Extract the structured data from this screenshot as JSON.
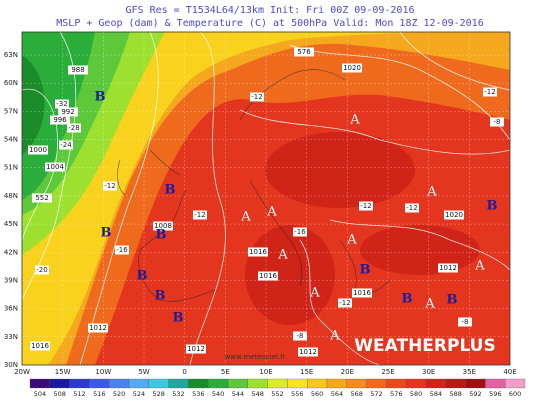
{
  "header": {
    "line1": "GFS Res = T1534L64/13km   Init: Fri 00Z 09-09-2016",
    "line2": "MSLP + Geop (dam) & Temperature (C) at 500hPa   Valid: Mon 18Z 12-09-2016"
  },
  "lat_labels": [
    "63N",
    "60N",
    "57N",
    "54N",
    "51N",
    "48N",
    "45N",
    "42N",
    "39N",
    "36N",
    "33N",
    "30N"
  ],
  "lon_labels": [
    "20W",
    "15W",
    "10W",
    "5W",
    "0",
    "5E",
    "10E",
    "15E",
    "20E",
    "25E",
    "30E",
    "35E",
    "40E"
  ],
  "pressure_labels": [
    988,
    992,
    996,
    1000,
    1004,
    552,
    1008,
    1016,
    1016,
    1016,
    1012,
    1012,
    1012,
    1012,
    1016,
    1020,
    1020,
    576
  ],
  "temperature_labels": [
    "-32",
    "-28",
    "-24",
    "-20",
    "-16",
    "-12",
    "-12",
    "-12",
    "-16",
    "-12",
    "-12",
    "-8",
    "-12",
    "-8",
    "-12",
    "-8"
  ],
  "high_markers": [
    "A",
    "A",
    "A",
    "A",
    "A",
    "A",
    "A",
    "A",
    "A",
    "A"
  ],
  "low_markers": [
    "B",
    "B",
    "B",
    "B",
    "B",
    "B",
    "B",
    "B",
    "B",
    "B",
    "B"
  ],
  "watermark": "WEATHERPLUS",
  "source": "www.meteociel.fr",
  "colorbar": {
    "labels": [
      504,
      508,
      512,
      516,
      520,
      524,
      528,
      532,
      536,
      540,
      544,
      548,
      552,
      556,
      560,
      564,
      568,
      572,
      576,
      580,
      584,
      588,
      592,
      596,
      600
    ],
    "colors": [
      "#3a0a7a",
      "#1a1aa0",
      "#2a3ad0",
      "#3a5ae8",
      "#4a82f0",
      "#58aaf0",
      "#40c8e0",
      "#20a8a0",
      "#1a8c2a",
      "#2aad3a",
      "#5cc83a",
      "#9ee030",
      "#d8ec28",
      "#f8e41c",
      "#f8c81c",
      "#f5a81e",
      "#f5881e",
      "#f06a1e",
      "#e84a1e",
      "#e4361e",
      "#d02418",
      "#b81a14",
      "#a01010",
      "#e060a0",
      "#f0a0c8"
    ]
  }
}
